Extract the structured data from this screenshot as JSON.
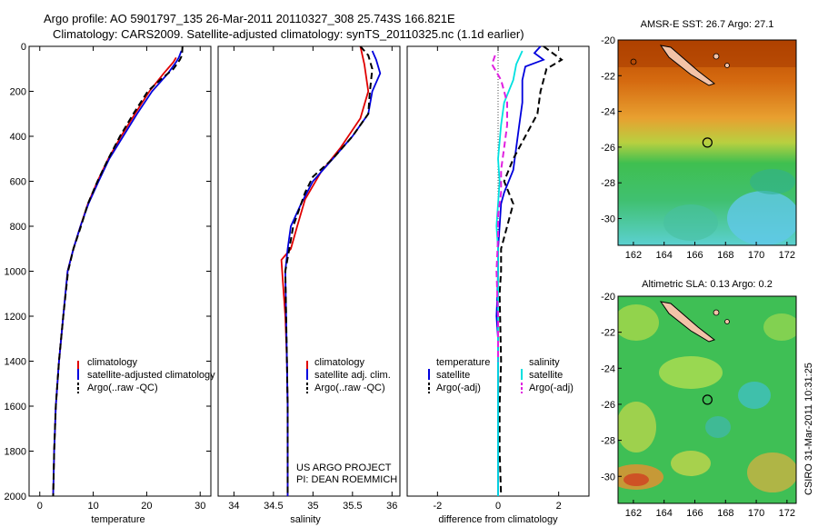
{
  "header": {
    "line1": "Argo profile: AO 5901797_135 26-Mar-2011 20110327_308 25.743S 166.821E",
    "line2": "Climatology: CARS2009. Satellite-adjusted climatology: synTS_20110325.nc (1.1d earlier)"
  },
  "colors": {
    "climatology": "#e00000",
    "satellite": "#0000dd",
    "argo": "#000000",
    "salinity_satellite": "#00e0e0",
    "salinity_argo": "#e020e0"
  },
  "credits": {
    "line1": "US ARGO PROJECT",
    "line2": "PI: DEAN ROEMMICH"
  },
  "timestamp": "CSIRO 31-Mar-2011 10:31:25",
  "chart_data": [
    {
      "type": "line",
      "xlabel": "temperature",
      "ylabel": "",
      "xlim": [
        -2,
        32
      ],
      "ylim": [
        2000,
        0
      ],
      "xticks": [
        0,
        10,
        20,
        30
      ],
      "yticks": [
        0,
        200,
        400,
        600,
        800,
        1000,
        1200,
        1400,
        1600,
        1800,
        2000
      ],
      "legend": [
        "climatology",
        "satellite-adjusted climatology",
        "Argo(..raw -QC)"
      ],
      "series": [
        {
          "name": "climatology",
          "color": "#e00000",
          "style": "solid",
          "points": [
            [
              25.5,
              50
            ],
            [
              25,
              70
            ],
            [
              23.2,
              120
            ],
            [
              20.5,
              200
            ],
            [
              17.8,
              300
            ],
            [
              15.2,
              400
            ],
            [
              12.8,
              500
            ],
            [
              10.8,
              600
            ],
            [
              9,
              700
            ],
            [
              7.6,
              800
            ],
            [
              6.3,
              900
            ],
            [
              5.2,
              1000
            ],
            [
              4.4,
              1200
            ],
            [
              3.6,
              1400
            ],
            [
              3,
              1600
            ],
            [
              2.7,
              1800
            ],
            [
              2.5,
              2000
            ]
          ]
        },
        {
          "name": "satellite-adjusted climatology",
          "color": "#0000dd",
          "style": "solid",
          "points": [
            [
              26.5,
              20
            ],
            [
              26,
              50
            ],
            [
              25.5,
              70
            ],
            [
              24,
              120
            ],
            [
              21,
              200
            ],
            [
              18.2,
              300
            ],
            [
              15.6,
              400
            ],
            [
              13,
              500
            ],
            [
              11,
              600
            ],
            [
              9.1,
              700
            ],
            [
              7.6,
              800
            ],
            [
              6.3,
              900
            ],
            [
              5.2,
              1000
            ],
            [
              4.4,
              1200
            ],
            [
              3.6,
              1400
            ],
            [
              3,
              1600
            ],
            [
              2.7,
              1800
            ],
            [
              2.5,
              2000
            ]
          ]
        },
        {
          "name": "Argo(..raw -QC)",
          "color": "#000000",
          "style": "dashed",
          "points": [
            [
              26.7,
              0
            ],
            [
              26.6,
              40
            ],
            [
              26.2,
              60
            ],
            [
              25,
              100
            ],
            [
              22.5,
              150
            ],
            [
              20.2,
              200
            ],
            [
              17.5,
              300
            ],
            [
              15,
              400
            ],
            [
              12.8,
              500
            ],
            [
              10.8,
              600
            ],
            [
              9,
              700
            ],
            [
              7.7,
              800
            ],
            [
              6.3,
              900
            ],
            [
              5.3,
              1000
            ],
            [
              4.4,
              1200
            ],
            [
              3.6,
              1400
            ],
            [
              3,
              1600
            ],
            [
              2.7,
              1800
            ],
            [
              2.5,
              2000
            ]
          ]
        }
      ]
    },
    {
      "type": "line",
      "xlabel": "salinity",
      "ylabel": "",
      "xlim": [
        33.8,
        36.1
      ],
      "ylim": [
        2000,
        0
      ],
      "xticks": [
        34,
        34.5,
        35,
        35.5,
        36
      ],
      "xticklabels": [
        "34",
        "34.5",
        "35",
        "35.5",
        "36"
      ],
      "legend": [
        "climatology",
        "satellite adj. clim.",
        "Argo(..raw -QC)"
      ],
      "series": [
        {
          "name": "climatology",
          "color": "#e00000",
          "style": "solid",
          "points": [
            [
              35.6,
              0
            ],
            [
              35.65,
              80
            ],
            [
              35.7,
              200
            ],
            [
              35.6,
              320
            ],
            [
              35.35,
              450
            ],
            [
              35.1,
              560
            ],
            [
              34.9,
              680
            ],
            [
              34.8,
              800
            ],
            [
              34.72,
              900
            ],
            [
              34.6,
              950
            ],
            [
              34.62,
              1050
            ],
            [
              34.65,
              1200
            ],
            [
              34.67,
              1400
            ],
            [
              34.68,
              1600
            ],
            [
              34.68,
              1800
            ],
            [
              34.68,
              2000
            ]
          ]
        },
        {
          "name": "satellite adj. clim.",
          "color": "#0000dd",
          "style": "solid",
          "points": [
            [
              35.75,
              20
            ],
            [
              35.8,
              60
            ],
            [
              35.85,
              120
            ],
            [
              35.75,
              200
            ],
            [
              35.7,
              300
            ],
            [
              35.5,
              400
            ],
            [
              35.25,
              500
            ],
            [
              35,
              600
            ],
            [
              34.85,
              700
            ],
            [
              34.72,
              800
            ],
            [
              34.68,
              900
            ],
            [
              34.65,
              1000
            ],
            [
              34.66,
              1200
            ],
            [
              34.67,
              1400
            ],
            [
              34.68,
              1600
            ],
            [
              34.68,
              1800
            ],
            [
              34.68,
              2000
            ]
          ]
        },
        {
          "name": "Argo(..raw -QC)",
          "color": "#000000",
          "style": "dashed",
          "points": [
            [
              35.6,
              0
            ],
            [
              35.7,
              40
            ],
            [
              35.75,
              100
            ],
            [
              35.72,
              200
            ],
            [
              35.7,
              300
            ],
            [
              35.5,
              400
            ],
            [
              35.25,
              500
            ],
            [
              35,
              580
            ],
            [
              34.9,
              650
            ],
            [
              34.75,
              800
            ],
            [
              34.7,
              900
            ],
            [
              34.65,
              1000
            ],
            [
              34.66,
              1200
            ],
            [
              34.67,
              1400
            ],
            [
              34.68,
              1600
            ],
            [
              34.68,
              1800
            ],
            [
              34.68,
              2000
            ]
          ]
        }
      ]
    },
    {
      "type": "line",
      "xlabel": "difference from climatology",
      "ylabel": "",
      "xlim": [
        -3,
        3
      ],
      "ylim": [
        2000,
        0
      ],
      "xticks": [
        -2,
        0,
        2
      ],
      "legend_titles": [
        "temperature",
        "salinity"
      ],
      "legend": [
        "satellite",
        "Argo(-adj)",
        "satellite",
        "Argo(-adj)"
      ],
      "series": [
        {
          "name": "satellite",
          "group": "temperature",
          "color": "#0000dd",
          "style": "solid",
          "points": [
            [
              1.4,
              0
            ],
            [
              1.2,
              30
            ],
            [
              1.5,
              60
            ],
            [
              0.9,
              90
            ],
            [
              0.8,
              150
            ],
            [
              0.8,
              250
            ],
            [
              0.7,
              350
            ],
            [
              0.6,
              450
            ],
            [
              0.5,
              550
            ],
            [
              0.2,
              650
            ],
            [
              0.1,
              700
            ],
            [
              0.05,
              800
            ],
            [
              0,
              900
            ],
            [
              0,
              1000
            ],
            [
              -0.02,
              1100
            ],
            [
              -0.05,
              1200
            ],
            [
              0,
              1300
            ],
            [
              0,
              1500
            ],
            [
              0,
              1700
            ],
            [
              0,
              1900
            ],
            [
              0,
              2000
            ]
          ]
        },
        {
          "name": "Argo(-adj)",
          "group": "temperature",
          "color": "#000000",
          "style": "dashed",
          "points": [
            [
              1.5,
              0
            ],
            [
              1.8,
              30
            ],
            [
              2.1,
              60
            ],
            [
              1.6,
              100
            ],
            [
              1.4,
              200
            ],
            [
              1.3,
              300
            ],
            [
              0.9,
              400
            ],
            [
              0.5,
              500
            ],
            [
              0.2,
              600
            ],
            [
              0.5,
              700
            ],
            [
              0.3,
              800
            ],
            [
              0.1,
              900
            ],
            [
              0.1,
              1000
            ],
            [
              0.05,
              1100
            ],
            [
              0.1,
              1400
            ],
            [
              0.05,
              1600
            ],
            [
              0.05,
              1800
            ],
            [
              0.1,
              2000
            ]
          ]
        },
        {
          "name": "satellite",
          "group": "salinity",
          "color": "#00e0e0",
          "style": "solid",
          "points": [
            [
              0.8,
              20
            ],
            [
              0.6,
              80
            ],
            [
              0.5,
              150
            ],
            [
              0.2,
              250
            ],
            [
              0.1,
              350
            ],
            [
              0,
              500
            ],
            [
              0.05,
              600
            ],
            [
              0,
              700
            ],
            [
              -0.05,
              800
            ],
            [
              0,
              900
            ],
            [
              0,
              1000
            ],
            [
              0,
              1200
            ],
            [
              0,
              1400
            ],
            [
              0,
              1600
            ],
            [
              0,
              1800
            ],
            [
              0,
              2000
            ]
          ]
        },
        {
          "name": "Argo(-adj)",
          "group": "salinity",
          "color": "#e020e0",
          "style": "dashed",
          "points": [
            [
              -0.1,
              40
            ],
            [
              -0.2,
              80
            ],
            [
              0.1,
              150
            ],
            [
              0.3,
              250
            ],
            [
              0.3,
              350
            ],
            [
              0.2,
              450
            ],
            [
              0.1,
              550
            ],
            [
              0.1,
              650
            ],
            [
              0,
              750
            ],
            [
              0,
              850
            ],
            [
              -0.05,
              1000
            ],
            [
              0,
              1200
            ],
            [
              0,
              1400
            ]
          ]
        }
      ]
    },
    {
      "type": "heatmap",
      "title": "AMSR-E SST: 26.7  Argo: 27.1",
      "xlim": [
        161,
        172.6
      ],
      "ylim": [
        -31.5,
        -20
      ],
      "xticks": [
        162,
        164,
        166,
        168,
        170,
        172
      ],
      "yticks": [
        -20,
        -22,
        -24,
        -26,
        -28,
        -30
      ],
      "marker": {
        "lon": 166.821,
        "lat": -25.743
      }
    },
    {
      "type": "heatmap",
      "title": "Altimetric SLA: 0.13  Argo: 0.2",
      "xlim": [
        161,
        172.6
      ],
      "ylim": [
        -31.5,
        -20
      ],
      "xticks": [
        162,
        164,
        166,
        168,
        170,
        172
      ],
      "yticks": [
        -20,
        -22,
        -24,
        -26,
        -28,
        -30
      ],
      "marker": {
        "lon": 166.821,
        "lat": -25.743
      }
    }
  ]
}
